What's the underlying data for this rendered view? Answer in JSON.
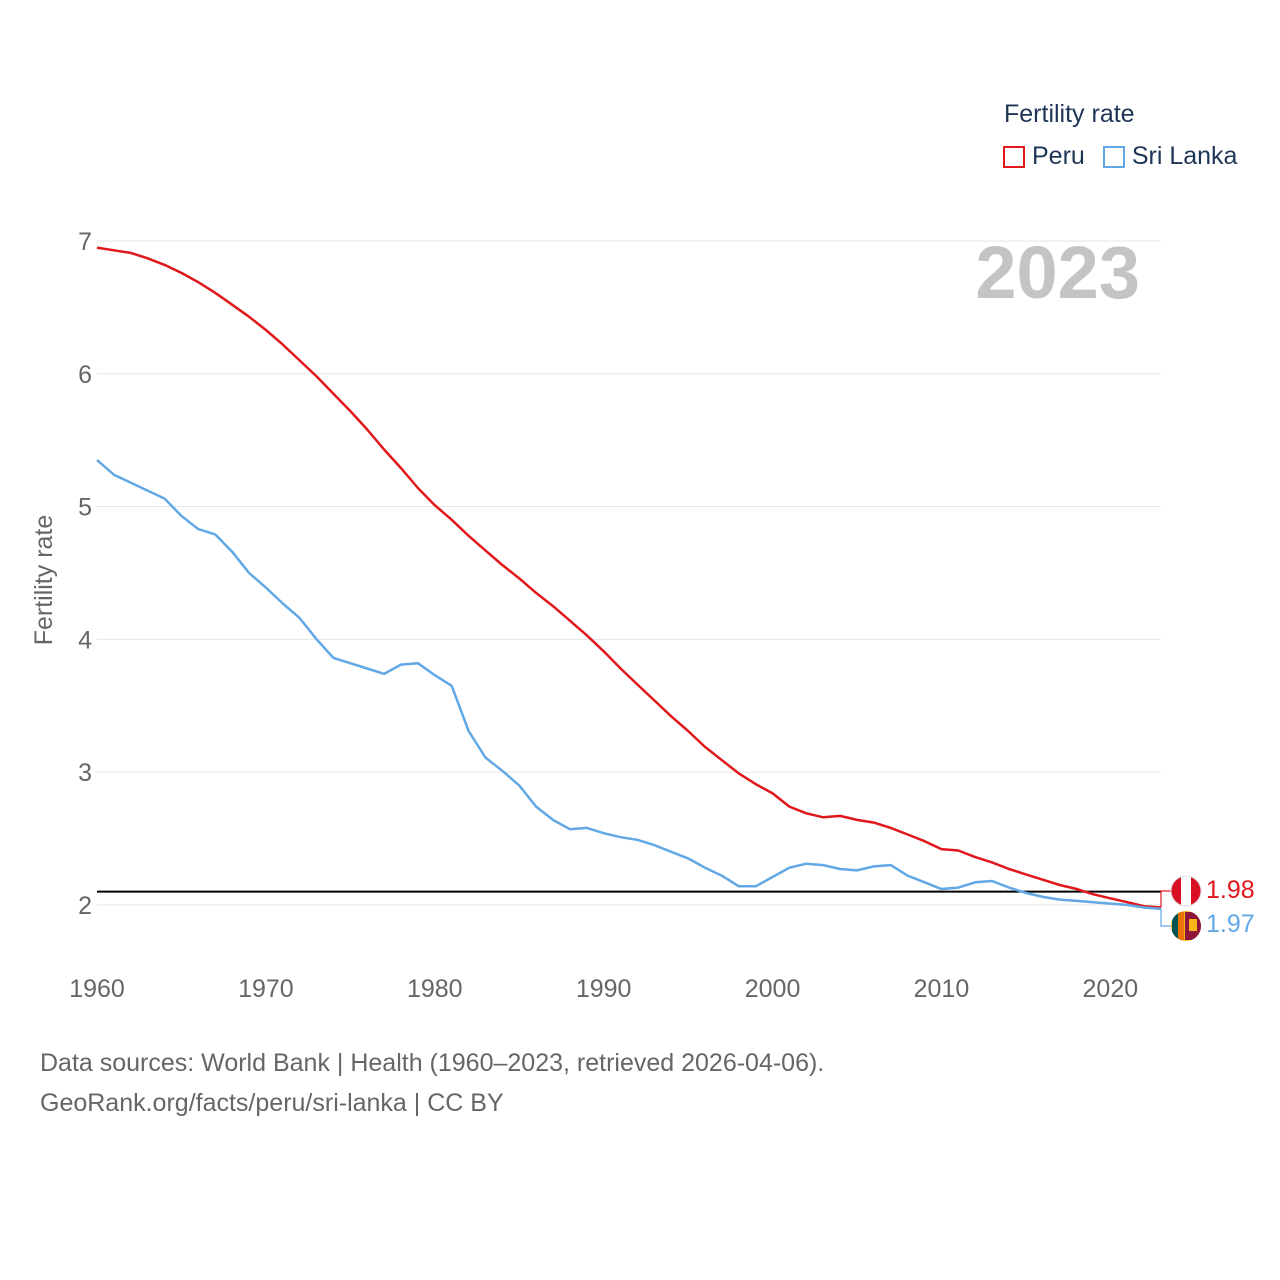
{
  "legend": {
    "title": "Fertility rate",
    "items": [
      {
        "label": "Peru",
        "color": "#e0171b"
      },
      {
        "label": "Sri Lanka",
        "color": "#62a8e5"
      }
    ]
  },
  "year_label": "2023",
  "source": {
    "line1": "Data sources: World Bank | Health (1960–2023, retrieved 2026-04-06).",
    "line2": "GeoRank.org/facts/peru/sri-lanka | CC BY"
  },
  "chart_data": {
    "type": "line",
    "title": "",
    "xlabel": "",
    "ylabel": "Fertility rate",
    "xlim": [
      1960,
      2023
    ],
    "ylim": [
      1.6,
      7.0
    ],
    "xticks": [
      1960,
      1970,
      1980,
      1990,
      2000,
      2010,
      2020
    ],
    "yticks": [
      2,
      3,
      4,
      5,
      6,
      7
    ],
    "reference_line": 2.1,
    "end_labels": [
      "1.98",
      "1.97"
    ],
    "series": [
      {
        "name": "Peru",
        "color": "#e0171b",
        "x": [
          1960,
          1961,
          1962,
          1963,
          1964,
          1965,
          1966,
          1967,
          1968,
          1969,
          1970,
          1971,
          1972,
          1973,
          1974,
          1975,
          1976,
          1977,
          1978,
          1979,
          1980,
          1981,
          1982,
          1983,
          1984,
          1985,
          1986,
          1987,
          1988,
          1989,
          1990,
          1991,
          1992,
          1993,
          1994,
          1995,
          1996,
          1997,
          1998,
          1999,
          2000,
          2001,
          2002,
          2003,
          2004,
          2005,
          2006,
          2007,
          2008,
          2009,
          2010,
          2011,
          2012,
          2013,
          2014,
          2015,
          2016,
          2017,
          2018,
          2019,
          2020,
          2021,
          2022,
          2023
        ],
        "values": [
          6.95,
          6.93,
          6.91,
          6.87,
          6.82,
          6.76,
          6.69,
          6.61,
          6.52,
          6.43,
          6.33,
          6.22,
          6.1,
          5.98,
          5.85,
          5.72,
          5.58,
          5.43,
          5.29,
          5.14,
          5.01,
          4.9,
          4.78,
          4.67,
          4.56,
          4.46,
          4.35,
          4.25,
          4.14,
          4.03,
          3.91,
          3.78,
          3.66,
          3.54,
          3.42,
          3.31,
          3.19,
          3.09,
          2.99,
          2.91,
          2.84,
          2.74,
          2.69,
          2.66,
          2.67,
          2.64,
          2.62,
          2.58,
          2.53,
          2.48,
          2.42,
          2.41,
          2.36,
          2.32,
          2.27,
          2.23,
          2.19,
          2.15,
          2.12,
          2.08,
          2.05,
          2.02,
          1.99,
          1.98
        ]
      },
      {
        "name": "Sri Lanka",
        "color": "#62a8e5",
        "x": [
          1960,
          1961,
          1962,
          1963,
          1964,
          1965,
          1966,
          1967,
          1968,
          1969,
          1970,
          1971,
          1972,
          1973,
          1974,
          1975,
          1976,
          1977,
          1978,
          1979,
          1980,
          1981,
          1982,
          1983,
          1984,
          1985,
          1986,
          1987,
          1988,
          1989,
          1990,
          1991,
          1992,
          1993,
          1994,
          1995,
          1996,
          1997,
          1998,
          1999,
          2000,
          2001,
          2002,
          2003,
          2004,
          2005,
          2006,
          2007,
          2008,
          2009,
          2010,
          2011,
          2012,
          2013,
          2014,
          2015,
          2016,
          2017,
          2018,
          2019,
          2020,
          2021,
          2022,
          2023
        ],
        "values": [
          5.35,
          5.24,
          5.18,
          5.12,
          5.06,
          4.93,
          4.83,
          4.79,
          4.66,
          4.5,
          4.39,
          4.27,
          4.16,
          4.0,
          3.86,
          3.82,
          3.78,
          3.74,
          3.81,
          3.82,
          3.73,
          3.65,
          3.31,
          3.11,
          3.01,
          2.9,
          2.74,
          2.64,
          2.57,
          2.58,
          2.54,
          2.51,
          2.49,
          2.45,
          2.4,
          2.35,
          2.28,
          2.22,
          2.14,
          2.14,
          2.21,
          2.28,
          2.31,
          2.3,
          2.27,
          2.26,
          2.29,
          2.3,
          2.22,
          2.17,
          2.12,
          2.13,
          2.17,
          2.18,
          2.13,
          2.09,
          2.06,
          2.04,
          2.03,
          2.02,
          2.01,
          2.0,
          1.98,
          1.97
        ]
      }
    ]
  }
}
